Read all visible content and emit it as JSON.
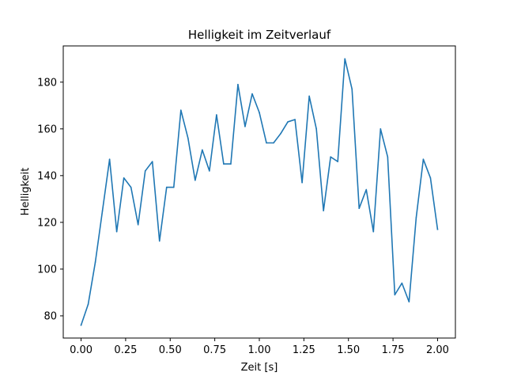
{
  "chart_data": {
    "type": "line",
    "title": "Helligkeit im Zeitverlauf",
    "xlabel": "Zeit [s]",
    "ylabel": "Helligkeit",
    "xlim": [
      -0.1,
      2.1
    ],
    "ylim": [
      70.5,
      195.5
    ],
    "xticks": [
      0.0,
      0.25,
      0.5,
      0.75,
      1.0,
      1.25,
      1.5,
      1.75,
      2.0
    ],
    "xtick_labels": [
      "0.00",
      "0.25",
      "0.50",
      "0.75",
      "1.00",
      "1.25",
      "1.50",
      "1.75",
      "2.00"
    ],
    "yticks": [
      80,
      100,
      120,
      140,
      160,
      180
    ],
    "ytick_labels": [
      "80",
      "100",
      "120",
      "140",
      "160",
      "180"
    ],
    "grid": false,
    "color": "#1f77b4",
    "series": [
      {
        "x": [
          0.0,
          0.04,
          0.08,
          0.12,
          0.16,
          0.2,
          0.24,
          0.28,
          0.32,
          0.36,
          0.4,
          0.44,
          0.48,
          0.52,
          0.56,
          0.6,
          0.64,
          0.68,
          0.72,
          0.76,
          0.8,
          0.84,
          0.88,
          0.92,
          0.96,
          1.0,
          1.04,
          1.08,
          1.12,
          1.16,
          1.2,
          1.24,
          1.28,
          1.32,
          1.36,
          1.4,
          1.44,
          1.48,
          1.52,
          1.56,
          1.6,
          1.64,
          1.68,
          1.72,
          1.76,
          1.8,
          1.84,
          1.88,
          1.92,
          1.96,
          2.0
        ],
        "values": [
          76,
          85,
          103,
          125,
          147,
          116,
          139,
          135,
          119,
          142,
          146,
          112,
          135,
          135,
          168,
          156,
          138,
          151,
          142,
          166,
          145,
          145,
          179,
          161,
          175,
          167,
          154,
          154,
          158,
          163,
          164,
          137,
          174,
          160,
          125,
          148,
          146,
          190,
          177,
          126,
          134,
          116,
          160,
          148,
          89,
          94,
          86,
          122,
          147,
          139,
          117
        ]
      }
    ]
  }
}
